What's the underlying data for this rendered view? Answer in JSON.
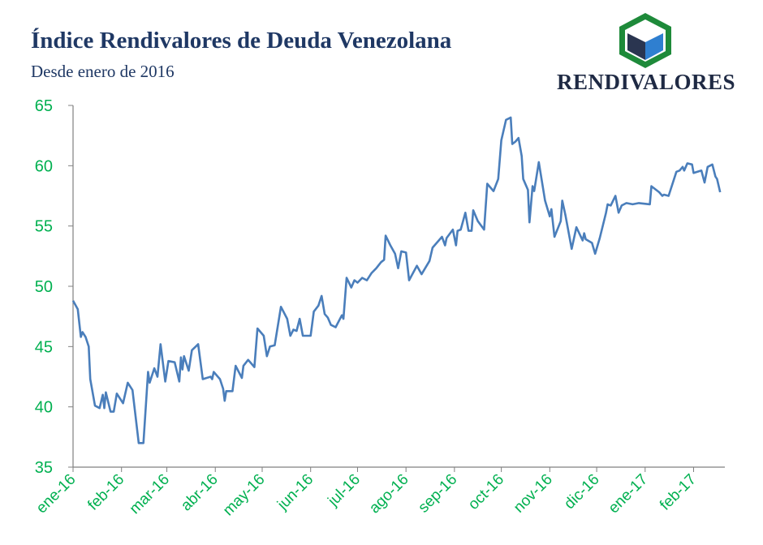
{
  "header": {
    "title": "Índice Rendivalores de Deuda Venezolana",
    "subtitle": "Desde enero de 2016"
  },
  "logo": {
    "text": "RENDIVALORES",
    "colors": {
      "hexagon": "#1e8a3a",
      "left_face": "#2a3550",
      "right_face": "#2f7fd0",
      "top_face": "#ffffff"
    }
  },
  "chart_data": {
    "type": "line",
    "title": "Índice Rendivalores de Deuda Venezolana",
    "subtitle": "Desde enero de 2016",
    "xlabel": "",
    "ylabel": "",
    "ylim": [
      35,
      65
    ],
    "xlim": [
      "2016-01-01",
      "2017-02-21"
    ],
    "yticks": [
      35,
      40,
      45,
      50,
      55,
      60,
      65
    ],
    "xticks": [
      {
        "date": "2016-01-01",
        "label": "ene-16"
      },
      {
        "date": "2016-02-01",
        "label": "feb-16"
      },
      {
        "date": "2016-03-01",
        "label": "mar-16"
      },
      {
        "date": "2016-04-01",
        "label": "abr-16"
      },
      {
        "date": "2016-05-01",
        "label": "may-16"
      },
      {
        "date": "2016-06-01",
        "label": "jun-16"
      },
      {
        "date": "2016-07-01",
        "label": "jul-16"
      },
      {
        "date": "2016-08-01",
        "label": "ago-16"
      },
      {
        "date": "2016-09-01",
        "label": "sep-16"
      },
      {
        "date": "2016-10-01",
        "label": "oct-16"
      },
      {
        "date": "2016-11-01",
        "label": "nov-16"
      },
      {
        "date": "2016-12-01",
        "label": "dic-16"
      },
      {
        "date": "2017-01-01",
        "label": "ene-17"
      },
      {
        "date": "2017-02-01",
        "label": "feb-17"
      }
    ],
    "grid": false,
    "line_color": "#4a7ebb",
    "tick_label_color": "#00b050",
    "series": [
      {
        "points": [
          [
            "2016-01-01",
            48.8
          ],
          [
            "2016-01-04",
            48.1
          ],
          [
            "2016-01-06",
            45.8
          ],
          [
            "2016-01-07",
            46.2
          ],
          [
            "2016-01-09",
            45.8
          ],
          [
            "2016-01-11",
            45.0
          ],
          [
            "2016-01-12",
            42.3
          ],
          [
            "2016-01-15",
            40.1
          ],
          [
            "2016-01-18",
            39.9
          ],
          [
            "2016-01-20",
            41.0
          ],
          [
            "2016-01-21",
            39.9
          ],
          [
            "2016-01-22",
            41.2
          ],
          [
            "2016-01-25",
            39.6
          ],
          [
            "2016-01-27",
            39.6
          ],
          [
            "2016-01-29",
            41.1
          ],
          [
            "2016-02-02",
            40.3
          ],
          [
            "2016-02-05",
            42.0
          ],
          [
            "2016-02-08",
            41.4
          ],
          [
            "2016-02-12",
            37.0
          ],
          [
            "2016-02-15",
            37.0
          ],
          [
            "2016-02-18",
            42.9
          ],
          [
            "2016-02-19",
            42.0
          ],
          [
            "2016-02-22",
            43.2
          ],
          [
            "2016-02-24",
            42.5
          ],
          [
            "2016-02-26",
            45.2
          ],
          [
            "2016-02-29",
            42.1
          ],
          [
            "2016-03-02",
            43.8
          ],
          [
            "2016-03-06",
            43.7
          ],
          [
            "2016-03-09",
            42.1
          ],
          [
            "2016-03-10",
            44.1
          ],
          [
            "2016-03-11",
            43.1
          ],
          [
            "2016-03-12",
            44.2
          ],
          [
            "2016-03-15",
            43.0
          ],
          [
            "2016-03-17",
            44.7
          ],
          [
            "2016-03-21",
            45.2
          ],
          [
            "2016-03-24",
            42.3
          ],
          [
            "2016-03-29",
            42.5
          ],
          [
            "2016-03-30",
            42.3
          ],
          [
            "2016-03-31",
            42.9
          ],
          [
            "2016-04-04",
            42.3
          ],
          [
            "2016-04-06",
            41.5
          ],
          [
            "2016-04-07",
            40.5
          ],
          [
            "2016-04-08",
            41.3
          ],
          [
            "2016-04-12",
            41.3
          ],
          [
            "2016-04-14",
            43.4
          ],
          [
            "2016-04-18",
            42.4
          ],
          [
            "2016-04-19",
            43.4
          ],
          [
            "2016-04-22",
            43.9
          ],
          [
            "2016-04-26",
            43.3
          ],
          [
            "2016-04-28",
            46.5
          ],
          [
            "2016-05-02",
            45.9
          ],
          [
            "2016-05-04",
            44.2
          ],
          [
            "2016-05-06",
            45.0
          ],
          [
            "2016-05-09",
            45.1
          ],
          [
            "2016-05-13",
            48.3
          ],
          [
            "2016-05-17",
            47.3
          ],
          [
            "2016-05-19",
            45.9
          ],
          [
            "2016-05-21",
            46.4
          ],
          [
            "2016-05-23",
            46.3
          ],
          [
            "2016-05-25",
            47.3
          ],
          [
            "2016-05-27",
            45.9
          ],
          [
            "2016-06-01",
            45.9
          ],
          [
            "2016-06-03",
            47.9
          ],
          [
            "2016-06-06",
            48.4
          ],
          [
            "2016-06-08",
            49.2
          ],
          [
            "2016-06-10",
            47.7
          ],
          [
            "2016-06-12",
            47.4
          ],
          [
            "2016-06-14",
            46.8
          ],
          [
            "2016-06-17",
            46.6
          ],
          [
            "2016-06-21",
            47.6
          ],
          [
            "2016-06-22",
            47.3
          ],
          [
            "2016-06-24",
            50.7
          ],
          [
            "2016-06-27",
            49.9
          ],
          [
            "2016-06-29",
            50.5
          ],
          [
            "2016-07-01",
            50.3
          ],
          [
            "2016-07-04",
            50.7
          ],
          [
            "2016-07-07",
            50.5
          ],
          [
            "2016-07-10",
            51.1
          ],
          [
            "2016-07-13",
            51.5
          ],
          [
            "2016-07-16",
            52.0
          ],
          [
            "2016-07-18",
            52.2
          ],
          [
            "2016-07-19",
            54.2
          ],
          [
            "2016-07-22",
            53.4
          ],
          [
            "2016-07-25",
            52.7
          ],
          [
            "2016-07-27",
            51.5
          ],
          [
            "2016-07-29",
            52.9
          ],
          [
            "2016-08-01",
            52.8
          ],
          [
            "2016-08-03",
            50.5
          ],
          [
            "2016-08-08",
            51.7
          ],
          [
            "2016-08-11",
            51.0
          ],
          [
            "2016-08-16",
            52.1
          ],
          [
            "2016-08-18",
            53.2
          ],
          [
            "2016-08-24",
            54.1
          ],
          [
            "2016-08-26",
            53.4
          ],
          [
            "2016-08-27",
            54.0
          ],
          [
            "2016-08-31",
            54.7
          ],
          [
            "2016-09-02",
            53.4
          ],
          [
            "2016-09-03",
            54.6
          ],
          [
            "2016-09-05",
            54.7
          ],
          [
            "2016-09-08",
            56.1
          ],
          [
            "2016-09-10",
            54.6
          ],
          [
            "2016-09-12",
            54.6
          ],
          [
            "2016-09-13",
            56.3
          ],
          [
            "2016-09-16",
            55.4
          ],
          [
            "2016-09-20",
            54.7
          ],
          [
            "2016-09-22",
            58.5
          ],
          [
            "2016-09-26",
            57.9
          ],
          [
            "2016-09-29",
            58.9
          ],
          [
            "2016-10-01",
            62.1
          ],
          [
            "2016-10-04",
            63.8
          ],
          [
            "2016-10-07",
            64.0
          ],
          [
            "2016-10-08",
            61.8
          ],
          [
            "2016-10-10",
            62.0
          ],
          [
            "2016-10-12",
            62.3
          ],
          [
            "2016-10-14",
            60.8
          ],
          [
            "2016-10-15",
            58.9
          ],
          [
            "2016-10-18",
            58.0
          ],
          [
            "2016-10-19",
            55.3
          ],
          [
            "2016-10-21",
            58.3
          ],
          [
            "2016-10-22",
            57.9
          ],
          [
            "2016-10-25",
            60.3
          ],
          [
            "2016-10-29",
            57.1
          ],
          [
            "2016-11-01",
            55.8
          ],
          [
            "2016-11-02",
            56.4
          ],
          [
            "2016-11-04",
            54.1
          ],
          [
            "2016-11-08",
            55.4
          ],
          [
            "2016-11-09",
            57.1
          ],
          [
            "2016-11-11",
            55.9
          ],
          [
            "2016-11-15",
            53.1
          ],
          [
            "2016-11-18",
            54.9
          ],
          [
            "2016-11-22",
            53.8
          ],
          [
            "2016-11-23",
            54.4
          ],
          [
            "2016-11-24",
            53.9
          ],
          [
            "2016-11-28",
            53.6
          ],
          [
            "2016-11-30",
            52.7
          ],
          [
            "2016-12-03",
            54.0
          ],
          [
            "2016-12-07",
            56.1
          ],
          [
            "2016-12-08",
            56.8
          ],
          [
            "2016-12-10",
            56.7
          ],
          [
            "2016-12-13",
            57.5
          ],
          [
            "2016-12-15",
            56.1
          ],
          [
            "2016-12-17",
            56.7
          ],
          [
            "2016-12-20",
            56.9
          ],
          [
            "2016-12-24",
            56.8
          ],
          [
            "2016-12-28",
            56.9
          ],
          [
            "2017-01-04",
            56.8
          ],
          [
            "2017-01-05",
            58.3
          ],
          [
            "2017-01-10",
            57.8
          ],
          [
            "2017-01-12",
            57.5
          ],
          [
            "2017-01-13",
            57.6
          ],
          [
            "2017-01-16",
            57.5
          ],
          [
            "2017-01-21",
            59.5
          ],
          [
            "2017-01-23",
            59.6
          ],
          [
            "2017-01-25",
            59.9
          ],
          [
            "2017-01-26",
            59.6
          ],
          [
            "2017-01-28",
            60.2
          ],
          [
            "2017-01-31",
            60.1
          ],
          [
            "2017-02-01",
            59.4
          ],
          [
            "2017-02-06",
            59.6
          ],
          [
            "2017-02-08",
            58.6
          ],
          [
            "2017-02-10",
            59.9
          ],
          [
            "2017-02-13",
            60.1
          ],
          [
            "2017-02-15",
            59.1
          ],
          [
            "2017-02-16",
            58.9
          ],
          [
            "2017-02-18",
            57.8
          ]
        ]
      }
    ]
  }
}
